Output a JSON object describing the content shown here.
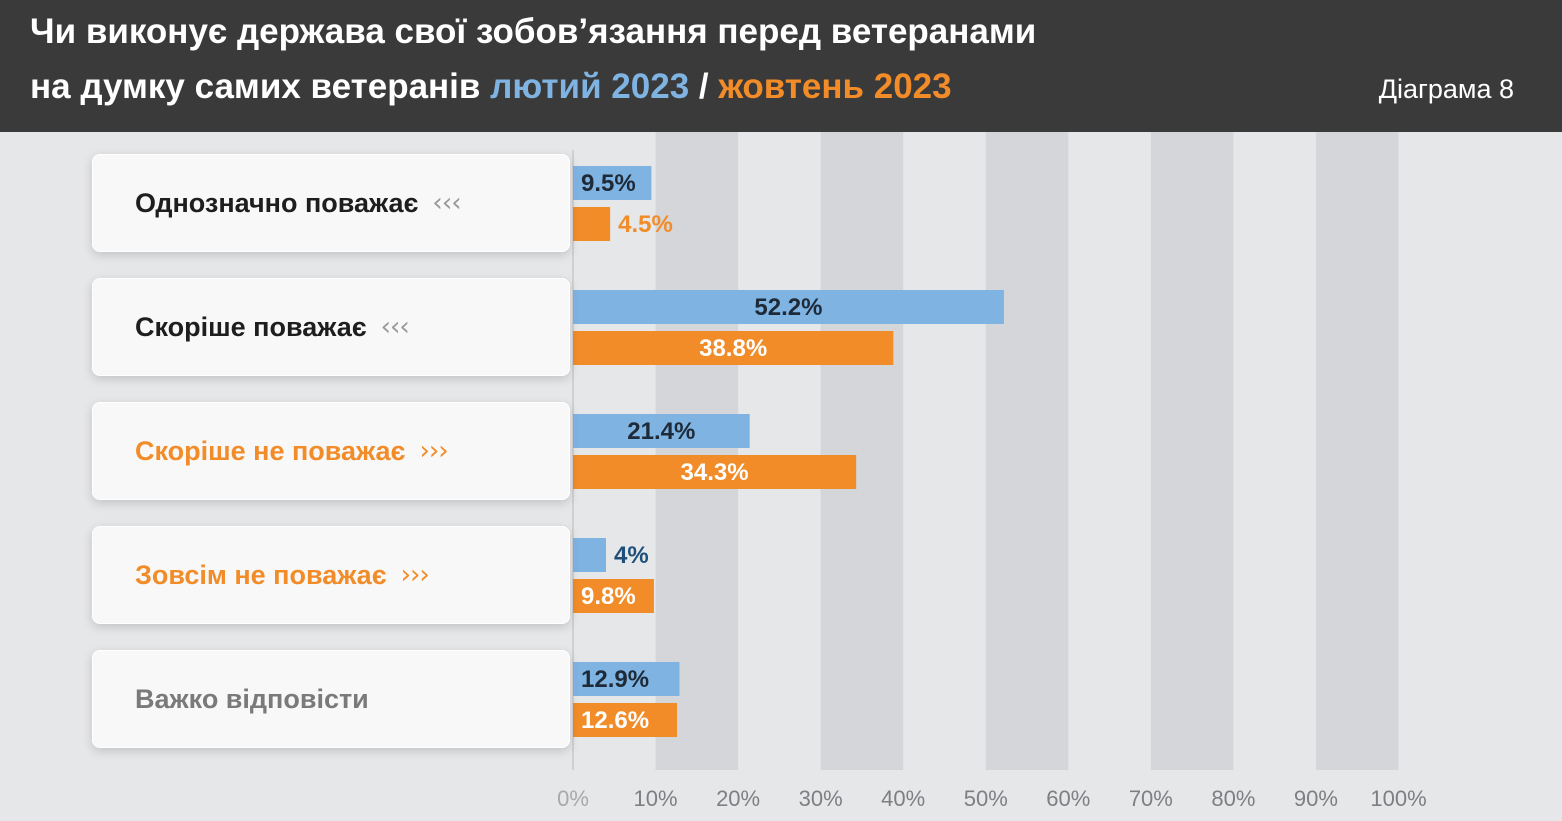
{
  "header": {
    "title_line1": "Чи виконує держава свої зобов’язання перед ветеранами",
    "title_line2_prefix": "на думку самих ветеранів",
    "series1_label": "лютий 2023",
    "separator": "/",
    "series2_label": "жовтень 2023",
    "diagram_label": "Діаграма 8"
  },
  "colors": {
    "header_bg": "#3a3a3a",
    "series1": "#7fb3e2",
    "series2": "#f28c28",
    "stripe": "#d4d6d9",
    "background": "#e6e7e9"
  },
  "chart_data": {
    "type": "bar",
    "orientation": "horizontal",
    "categories": [
      "Однозначно поважає",
      "Скоріше поважає",
      "Скоріше не поважає",
      "Зовсім не поважає",
      "Важко відповісти"
    ],
    "category_arrows": [
      "‹‹‹",
      "‹‹‹",
      "›››",
      "›››",
      ""
    ],
    "category_tone": [
      "pos",
      "pos",
      "neg",
      "neg",
      "neu"
    ],
    "series": [
      {
        "name": "лютий 2023",
        "values": [
          9.5,
          52.2,
          21.4,
          4,
          12.9
        ],
        "labels": [
          "9.5%",
          "52.2%",
          "21.4%",
          "4%",
          "12.9%"
        ]
      },
      {
        "name": "жовтень 2023",
        "values": [
          4.5,
          38.8,
          34.3,
          9.8,
          12.6
        ],
        "labels": [
          "4.5%",
          "38.8%",
          "34.3%",
          "9.8%",
          "12.6%"
        ]
      }
    ],
    "xlim": [
      0,
      100
    ],
    "xticks": [
      "0%",
      "10%",
      "20%",
      "30%",
      "40%",
      "50%",
      "60%",
      "70%",
      "80%",
      "90%",
      "100%"
    ]
  }
}
